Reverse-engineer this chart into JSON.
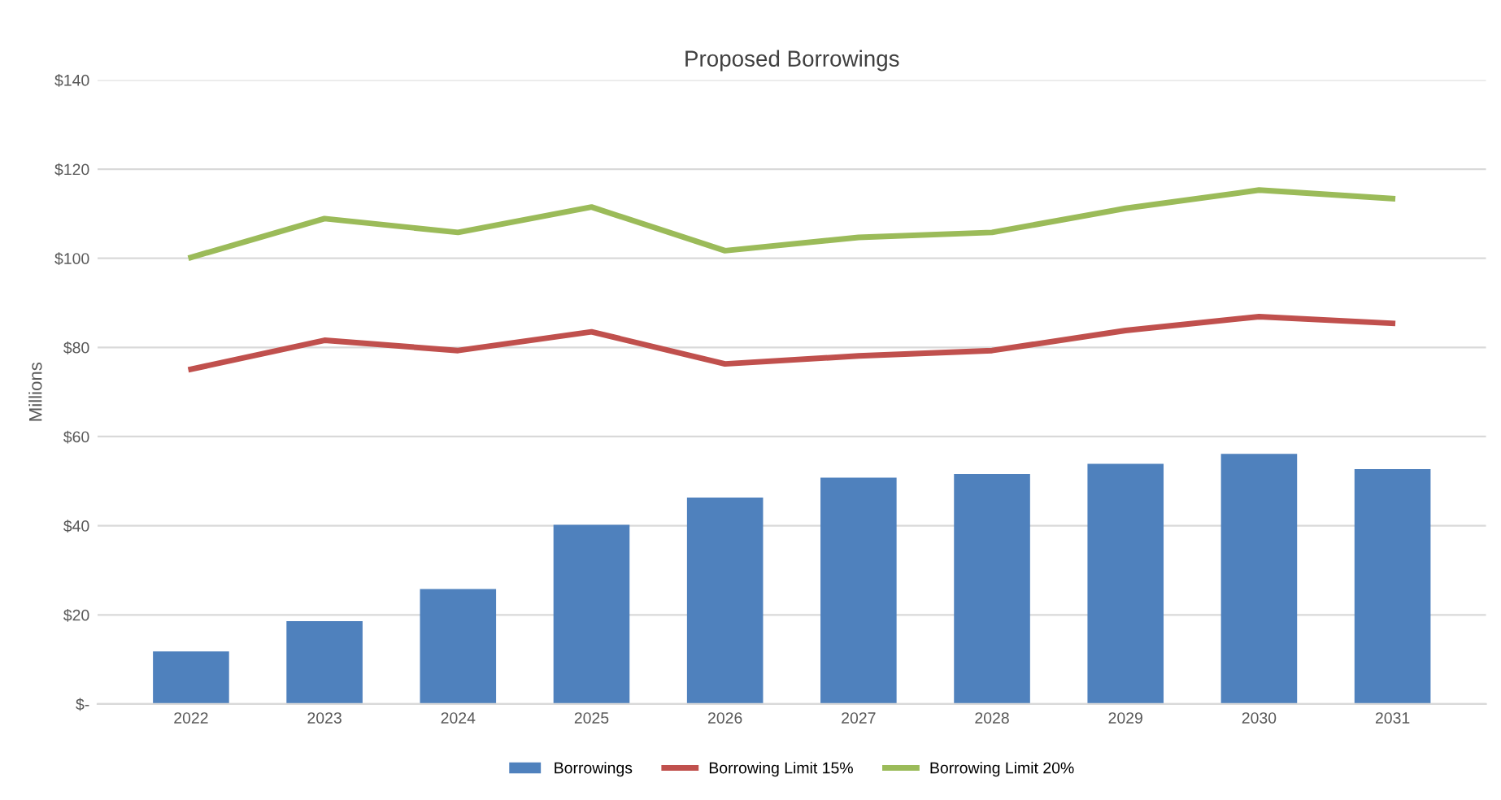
{
  "chart_data": {
    "type": "bar",
    "title": "Proposed Borrowings",
    "ylabel": "Millions",
    "categories": [
      "2022",
      "2023",
      "2024",
      "2025",
      "2026",
      "2027",
      "2028",
      "2029",
      "2030",
      "2031"
    ],
    "series": [
      {
        "name": "Borrowings",
        "color": "#4f81bd",
        "values": [
          11.8,
          18.6,
          25.8,
          40.2,
          46.3,
          50.8,
          51.6,
          53.9,
          56.1,
          52.7
        ]
      },
      {
        "name": "Borrowing Limit 15%",
        "type": "line",
        "color": "#c0504d",
        "values": [
          75.1,
          81.6,
          79.3,
          83.5,
          76.3,
          78.1,
          79.3,
          83.8,
          86.9,
          85.4
        ]
      },
      {
        "name": "Borrowing Limit 20%",
        "type": "line",
        "color": "#9bbb59",
        "values": [
          100.2,
          108.9,
          105.8,
          111.5,
          101.7,
          104.7,
          105.8,
          111.2,
          115.3,
          113.4
        ]
      }
    ],
    "ylim": [
      0,
      140
    ],
    "yticks": [
      {
        "value": 0,
        "label": "$-"
      },
      {
        "value": 20,
        "label": "$20"
      },
      {
        "value": 40,
        "label": "$40"
      },
      {
        "value": 60,
        "label": "$60"
      },
      {
        "value": 80,
        "label": "$80"
      },
      {
        "value": 100,
        "label": "$100"
      },
      {
        "value": 120,
        "label": "$120"
      },
      {
        "value": 140,
        "label": "$140"
      }
    ],
    "grid": "y",
    "legend": "bottom",
    "marker": "none",
    "line_style": "solid"
  }
}
